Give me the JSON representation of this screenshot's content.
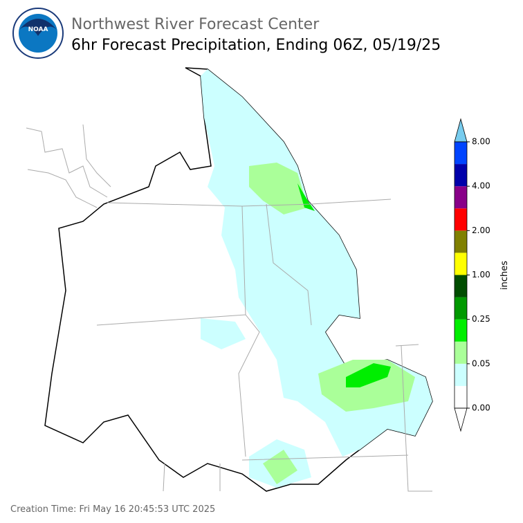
{
  "header": {
    "title": "Northwest River Forecast Center",
    "subtitle": "6hr Forecast Precipitation, Ending 06Z, 05/19/25"
  },
  "colorbar": {
    "label": "inches",
    "ticks": [
      "0.00",
      "0.05",
      "0.25",
      "1.00",
      "2.00",
      "4.00",
      "8.00"
    ],
    "colors": [
      "#ffffff",
      "#ccffff",
      "#aaff99",
      "#00ee00",
      "#009900",
      "#004d00",
      "#ffff00",
      "#808000",
      "#ff0000",
      "#880088",
      "#0000aa",
      "#0044ff"
    ],
    "under_color": "#ffffff",
    "over_color": "#77ccee"
  },
  "footer": {
    "creation_time": "Creation Time: Fri May 16 20:45:53 UTC 2025"
  }
}
